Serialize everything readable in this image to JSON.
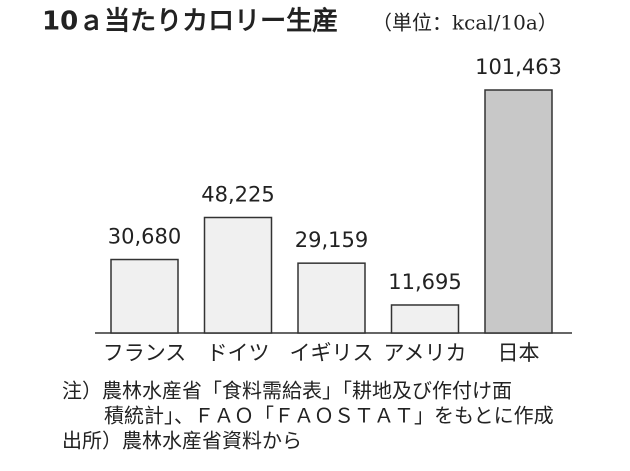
{
  "chart_data": {
    "type": "bar",
    "title": "10ａ当たりカロリー生産",
    "subtitle": "（単位：kcal/10a）",
    "categories": [
      "フランス",
      "ドイツ",
      "イギリス",
      "アメリカ",
      "日本"
    ],
    "values": [
      30680,
      48225,
      29159,
      11695,
      101463
    ],
    "value_labels": [
      "30,680",
      "48,225",
      "29,159",
      "11,695",
      "101,463"
    ],
    "colors": [
      "#f0f0f0",
      "#f0f0f0",
      "#f0f0f0",
      "#f0f0f0",
      "#c8c8c8"
    ],
    "notes": [
      "注）農林水産省「食料需給表」「耕地及び作付け面",
      "積統計」、ＦＡＯ「ＦＡＯＳＴＡＴ」をもとに作成"
    ],
    "source": "出所）農林水産省資料から"
  }
}
